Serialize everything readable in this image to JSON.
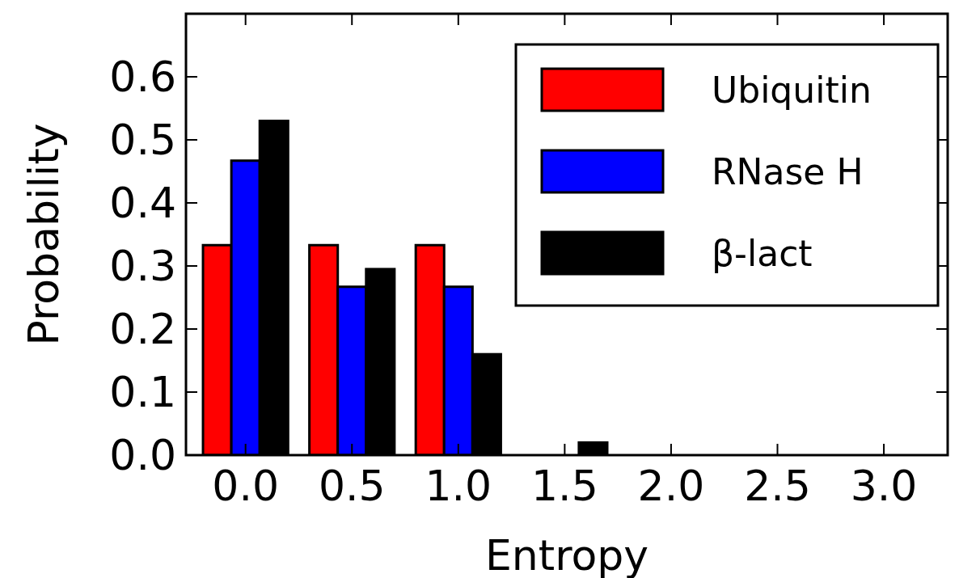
{
  "chart_data": {
    "type": "bar",
    "x": [
      0,
      0.5,
      1,
      1.5,
      2,
      2.5,
      3
    ],
    "xlabel": "Entropy",
    "ylabel": "Probability",
    "series": [
      {
        "name": "Ubiquitin",
        "color": "#ff0000",
        "values": [
          0.333,
          0.333,
          0.333,
          0,
          0,
          0,
          0
        ]
      },
      {
        "name": "RNase H",
        "color": "#0000ff",
        "values": [
          0.467,
          0.267,
          0.267,
          0,
          0,
          0,
          0
        ]
      },
      {
        "name": "β-lact",
        "color": "#000000",
        "values": [
          0.53,
          0.295,
          0.16,
          0.02,
          0,
          0,
          0
        ]
      }
    ],
    "xlim": [
      -0.28,
      3.3
    ],
    "ylim": [
      0,
      0.7
    ],
    "xticks": [
      {
        "value": 0,
        "label": "0.0"
      },
      {
        "value": 0.5,
        "label": "0.5"
      },
      {
        "value": 1,
        "label": "1.0"
      },
      {
        "value": 1.5,
        "label": "1.5"
      },
      {
        "value": 2,
        "label": "2.0"
      },
      {
        "value": 2.5,
        "label": "2.5"
      },
      {
        "value": 3,
        "label": "3.0"
      }
    ],
    "yticks": [
      {
        "value": 0,
        "label": "0.0"
      },
      {
        "value": 0.1,
        "label": "0.1"
      },
      {
        "value": 0.2,
        "label": "0.2"
      },
      {
        "value": 0.3,
        "label": "0.3"
      },
      {
        "value": 0.4,
        "label": "0.4"
      },
      {
        "value": 0.5,
        "label": "0.5"
      },
      {
        "value": 0.6,
        "label": "0.6"
      }
    ],
    "legend": "top right"
  }
}
